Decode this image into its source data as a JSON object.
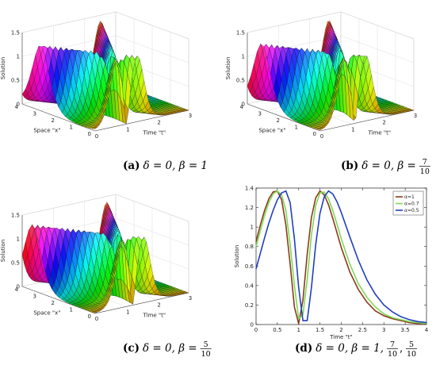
{
  "chart_data": [
    {
      "id": "a",
      "type": "surface",
      "surface_fn": "sech2",
      "x_values": [
        0,
        0.5,
        1,
        1.5,
        2,
        2.5,
        3,
        3.5,
        4
      ],
      "t_values": [
        0,
        0.375,
        0.75,
        1.125,
        1.5,
        1.875,
        2.25,
        2.625,
        3
      ],
      "zlabel": "Solution",
      "xlabel": "Space \"x\"",
      "tlabel": "Time \"t\"",
      "x_ticks": [
        "0",
        "1",
        "2",
        "3",
        "4"
      ],
      "t_ticks": [
        "0",
        "1",
        "2",
        "3"
      ],
      "z_ticks": [
        "0",
        "0.5",
        "1",
        "1.5"
      ],
      "zlim": [
        0,
        1.5
      ],
      "peak": 1.38,
      "trough_t": 1.0,
      "caption_label": "(a)",
      "caption_text": "δ = 0, β = 1"
    },
    {
      "id": "b",
      "type": "surface",
      "surface_fn": "sech2",
      "x_values": [
        0,
        0.5,
        1,
        1.5,
        2,
        2.5,
        3,
        3.5,
        4
      ],
      "t_values": [
        0,
        0.375,
        0.75,
        1.125,
        1.5,
        1.875,
        2.25,
        2.625,
        3
      ],
      "zlabel": "Solution",
      "xlabel": "Space \"x\"",
      "tlabel": "Time \"t\"",
      "x_ticks": [
        "0",
        "1",
        "2",
        "3",
        "4"
      ],
      "t_ticks": [
        "0",
        "1",
        "2",
        "3"
      ],
      "z_ticks": [
        "0",
        "0.5",
        "1",
        "1.5"
      ],
      "zlim": [
        0,
        1.5
      ],
      "peak": 1.38,
      "trough_t": 1.1,
      "caption_label": "(b)",
      "caption_text": "δ = 0, β =",
      "caption_frac_num": "7",
      "caption_frac_den": "10"
    },
    {
      "id": "c",
      "type": "surface",
      "surface_fn": "sech2",
      "x_values": [
        0,
        0.5,
        1,
        1.5,
        2,
        2.5,
        3,
        3.5,
        4
      ],
      "t_values": [
        0,
        0.375,
        0.75,
        1.125,
        1.5,
        1.875,
        2.25,
        2.625,
        3
      ],
      "zlabel": "Solution",
      "xlabel": "Space \"x\"",
      "tlabel": "Time \"t\"",
      "x_ticks": [
        "0",
        "1",
        "2",
        "3",
        "4"
      ],
      "t_ticks": [
        "0",
        "1",
        "2",
        "3"
      ],
      "z_ticks": [
        "0",
        "0.5",
        "1",
        "1.5"
      ],
      "zlim": [
        0,
        1.5
      ],
      "peak": 1.38,
      "trough_t": 1.2,
      "caption_label": "(c)",
      "caption_text": "δ = 0, β =",
      "caption_frac_num": "5",
      "caption_frac_den": "10"
    },
    {
      "id": "d",
      "type": "line",
      "xlabel": "Time \"t\"",
      "ylabel": "Solution",
      "xlim": [
        0,
        4
      ],
      "ylim": [
        0,
        1.4
      ],
      "x_ticks": [
        "0",
        "0.5",
        "1",
        "1.5",
        "2",
        "2.5",
        "3",
        "3.5",
        "4"
      ],
      "y_ticks": [
        "0",
        "0.2",
        "0.4",
        "0.6",
        "0.8",
        "1",
        "1.2",
        "1.4"
      ],
      "legend_position": "top-right",
      "series": [
        {
          "name": "α=1",
          "color": "#8b3a1a",
          "x": [
            0,
            0.1,
            0.2,
            0.3,
            0.4,
            0.5,
            0.6,
            0.7,
            0.8,
            0.9,
            1.0,
            1.1,
            1.2,
            1.3,
            1.4,
            1.5,
            1.6,
            1.7,
            1.8,
            1.9,
            2.0,
            2.2,
            2.4,
            2.6,
            2.8,
            3.0,
            3.2,
            3.4,
            3.6,
            3.8,
            4.0
          ],
          "y": [
            0.85,
            1.02,
            1.17,
            1.29,
            1.36,
            1.37,
            1.28,
            1.02,
            0.62,
            0.18,
            0.01,
            0.25,
            0.72,
            1.1,
            1.3,
            1.37,
            1.33,
            1.23,
            1.09,
            0.94,
            0.79,
            0.54,
            0.36,
            0.23,
            0.14,
            0.09,
            0.06,
            0.04,
            0.02,
            0.01,
            0.01
          ]
        },
        {
          "name": "α=0.7",
          "color": "#7ed957",
          "x": [
            0,
            0.1,
            0.2,
            0.3,
            0.4,
            0.5,
            0.6,
            0.7,
            0.8,
            0.9,
            1.0,
            1.1,
            1.2,
            1.3,
            1.4,
            1.5,
            1.6,
            1.7,
            1.8,
            1.9,
            2.0,
            2.2,
            2.4,
            2.6,
            2.8,
            3.0,
            3.2,
            3.4,
            3.6,
            3.8,
            4.0
          ],
          "y": [
            0.8,
            0.96,
            1.12,
            1.25,
            1.34,
            1.37,
            1.33,
            1.17,
            0.82,
            0.4,
            0.06,
            0.1,
            0.46,
            0.92,
            1.22,
            1.35,
            1.36,
            1.29,
            1.17,
            1.03,
            0.88,
            0.62,
            0.42,
            0.28,
            0.18,
            0.11,
            0.07,
            0.05,
            0.03,
            0.02,
            0.01
          ]
        },
        {
          "name": "α=0.5",
          "color": "#1f3fbf",
          "x": [
            0,
            0.1,
            0.2,
            0.3,
            0.4,
            0.5,
            0.6,
            0.7,
            0.8,
            0.9,
            1.0,
            1.1,
            1.2,
            1.3,
            1.4,
            1.5,
            1.6,
            1.7,
            1.8,
            1.9,
            2.0,
            2.2,
            2.4,
            2.6,
            2.8,
            3.0,
            3.2,
            3.4,
            3.6,
            3.8,
            4.0
          ],
          "y": [
            0.57,
            0.73,
            0.89,
            1.04,
            1.17,
            1.28,
            1.35,
            1.37,
            1.25,
            0.88,
            0.38,
            0.04,
            0.04,
            0.38,
            0.82,
            1.14,
            1.31,
            1.37,
            1.34,
            1.26,
            1.15,
            0.9,
            0.66,
            0.46,
            0.31,
            0.2,
            0.13,
            0.08,
            0.05,
            0.03,
            0.02
          ]
        }
      ],
      "caption_label": "(d)",
      "caption_text": "δ = 0, β = 1,",
      "caption_fracs": [
        {
          "num": "7",
          "den": "10"
        },
        {
          "num": "5",
          "den": "10"
        }
      ]
    }
  ]
}
